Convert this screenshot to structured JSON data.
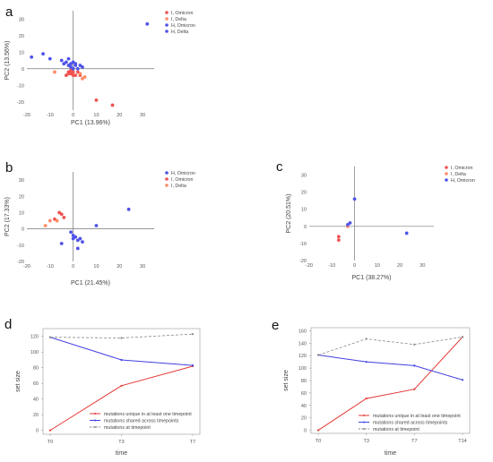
{
  "colors": {
    "red": "#ef5350",
    "orange": "#ff8a65",
    "blue": "#4f53e8",
    "gray": "#888888",
    "line_red": "#e53935",
    "line_blue": "#3f3fe0"
  },
  "chart_data": [
    {
      "id": "a",
      "letter": "a",
      "type": "scatter",
      "xlabel": "PC1 (13.96%)",
      "ylabel": "PC2 (13.56%)",
      "xlim": [
        -20,
        35
      ],
      "ylim": [
        -25,
        35
      ],
      "xticks": [
        -20,
        -10,
        0,
        10,
        20,
        30
      ],
      "yticks": [
        -20,
        -10,
        0,
        10,
        20,
        30
      ],
      "legend_position": "top-right",
      "series": [
        {
          "name": "I, Omicron",
          "color": "#ef5350",
          "points": [
            [
              -2,
              -2
            ],
            [
              -1,
              -3
            ],
            [
              -1,
              -1
            ],
            [
              0,
              -2
            ],
            [
              1,
              -4
            ],
            [
              2,
              -2
            ],
            [
              3,
              -4
            ],
            [
              -3,
              -4
            ],
            [
              10,
              -19
            ],
            [
              17,
              -22
            ],
            [
              0,
              -4
            ],
            [
              -2,
              -3
            ]
          ]
        },
        {
          "name": "I, Delta",
          "color": "#ff8a65",
          "points": [
            [
              -8,
              -2
            ],
            [
              3,
              -3
            ],
            [
              5,
              -5
            ],
            [
              4,
              -6
            ]
          ]
        },
        {
          "name": "H, Omicron",
          "color": "#4f53e8",
          "points": [
            [
              32,
              27
            ],
            [
              -2,
              6
            ],
            [
              0,
              4
            ],
            [
              1,
              3
            ],
            [
              3,
              2
            ],
            [
              -1,
              1
            ],
            [
              2,
              0
            ],
            [
              4,
              1
            ],
            [
              -2,
              2
            ],
            [
              0,
              0
            ],
            [
              1,
              2
            ],
            [
              -1,
              3
            ]
          ]
        },
        {
          "name": "H, Delta",
          "color": "#4f53e8",
          "points": [
            [
              -18,
              7
            ],
            [
              -13,
              9
            ],
            [
              -10,
              6
            ],
            [
              -5,
              5
            ],
            [
              -3,
              4
            ],
            [
              -4,
              3
            ]
          ]
        }
      ]
    },
    {
      "id": "b",
      "letter": "b",
      "type": "scatter",
      "xlabel": "PC1 (21.45%)",
      "ylabel": "PC2 (17.33%)",
      "xlim": [
        -20,
        35
      ],
      "ylim": [
        -20,
        35
      ],
      "xticks": [
        -20,
        -10,
        0,
        10,
        20,
        30
      ],
      "yticks": [
        -20,
        -10,
        0,
        10,
        20,
        30
      ],
      "legend_position": "top-right",
      "series": [
        {
          "name": "H, Omicron",
          "color": "#4f53e8",
          "points": [
            [
              24,
              12
            ],
            [
              10,
              2
            ],
            [
              0,
              -4
            ],
            [
              1,
              -5
            ],
            [
              2,
              -7
            ],
            [
              3,
              -6
            ],
            [
              4,
              -8
            ],
            [
              2,
              -12
            ],
            [
              -5,
              -9
            ],
            [
              -1,
              -2
            ],
            [
              0,
              -6
            ]
          ]
        },
        {
          "name": "I, Omicron",
          "color": "#ef5350",
          "points": [
            [
              -8,
              6
            ],
            [
              -6,
              10
            ],
            [
              -5,
              9
            ],
            [
              -4,
              7
            ]
          ]
        },
        {
          "name": "I, Delta",
          "color": "#ff8a65",
          "points": [
            [
              -12,
              2
            ],
            [
              -10,
              5
            ],
            [
              -7,
              5
            ]
          ]
        }
      ]
    },
    {
      "id": "c",
      "letter": "c",
      "type": "scatter",
      "xlabel": "PC1 (38.27%)",
      "ylabel": "PC2 (20.51%)",
      "xlim": [
        -20,
        35
      ],
      "ylim": [
        -20,
        35
      ],
      "xticks": [
        -20,
        -10,
        0,
        10,
        20,
        30
      ],
      "yticks": [
        -20,
        -10,
        0,
        10,
        20,
        30
      ],
      "legend_position": "top-right",
      "series": [
        {
          "name": "I, Omicron",
          "color": "#ef5350",
          "points": [
            [
              -7,
              -6
            ],
            [
              -7,
              -8
            ]
          ]
        },
        {
          "name": "I, Delta",
          "color": "#ff8a65",
          "points": [
            [
              -3,
              0
            ]
          ]
        },
        {
          "name": "H, Omicron",
          "color": "#4f53e8",
          "points": [
            [
              0,
              16
            ],
            [
              23,
              -4
            ],
            [
              -3,
              1
            ],
            [
              -2,
              2
            ]
          ]
        }
      ]
    },
    {
      "id": "d",
      "letter": "d",
      "type": "line",
      "xlabel": "time",
      "ylabel": "set size",
      "categories": [
        "T0",
        "T3",
        "T7"
      ],
      "ylim": [
        -5,
        130
      ],
      "yticks": [
        0,
        20,
        40,
        60,
        80,
        100,
        120
      ],
      "legend_position": "bottom-right",
      "series": [
        {
          "name": "mutations unique in at least one timepoint",
          "color": "#e53935",
          "dash": false,
          "values": [
            0,
            57,
            82
          ]
        },
        {
          "name": "mutations shared across timepoints",
          "color": "#3f3fe0",
          "dash": false,
          "values": [
            119,
            90,
            83
          ]
        },
        {
          "name": "mutations at timepoint",
          "color": "#888888",
          "dash": true,
          "values": [
            119,
            118,
            123
          ]
        }
      ]
    },
    {
      "id": "e",
      "letter": "e",
      "type": "line",
      "xlabel": "time",
      "ylabel": "set size",
      "categories": [
        "T0",
        "T3",
        "T7",
        "T14"
      ],
      "ylim": [
        -5,
        165
      ],
      "yticks": [
        0,
        20,
        40,
        60,
        80,
        100,
        120,
        140,
        160
      ],
      "legend_position": "bottom-right",
      "series": [
        {
          "name": "mutations unique in at least one timepoint",
          "color": "#e53935",
          "dash": false,
          "values": [
            0,
            51,
            66,
            150
          ]
        },
        {
          "name": "mutations shared across timepoints",
          "color": "#3f3fe0",
          "dash": false,
          "values": [
            121,
            110,
            104,
            81
          ]
        },
        {
          "name": "mutations at timepoint",
          "color": "#888888",
          "dash": true,
          "values": [
            121,
            147,
            138,
            150
          ]
        }
      ]
    }
  ]
}
